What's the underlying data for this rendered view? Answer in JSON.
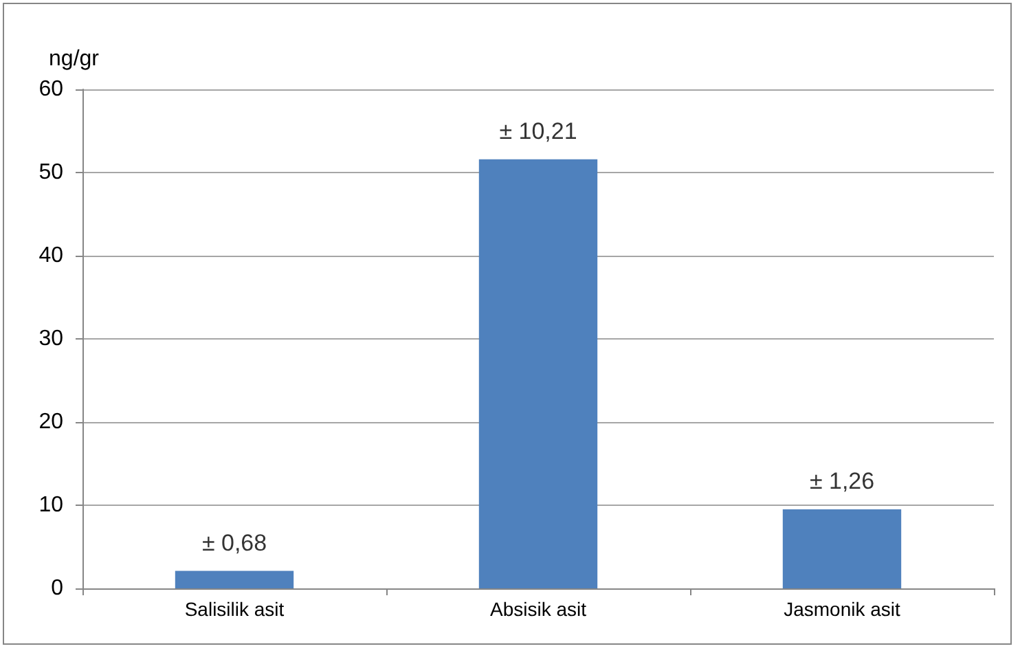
{
  "chart_data": {
    "type": "bar",
    "ylabel": "ng/gr",
    "categories": [
      "Salisilik asit",
      "Absisik asit",
      "Jasmonik asit"
    ],
    "values": [
      2.1,
      51.6,
      9.5
    ],
    "color": "#4f81bd",
    "ylim": [
      0,
      60
    ],
    "yticks": [
      0,
      10,
      20,
      30,
      40,
      50,
      60
    ],
    "grid": "y",
    "annotations": [
      {
        "text": "± 0,68",
        "x": "Salisilik asit",
        "y": 2.1
      },
      {
        "text": "± 10,21",
        "x": "Absisik asit",
        "y": 51.6
      },
      {
        "text": "± 1,26",
        "x": "Jasmonik asit",
        "y": 9.5
      }
    ]
  }
}
